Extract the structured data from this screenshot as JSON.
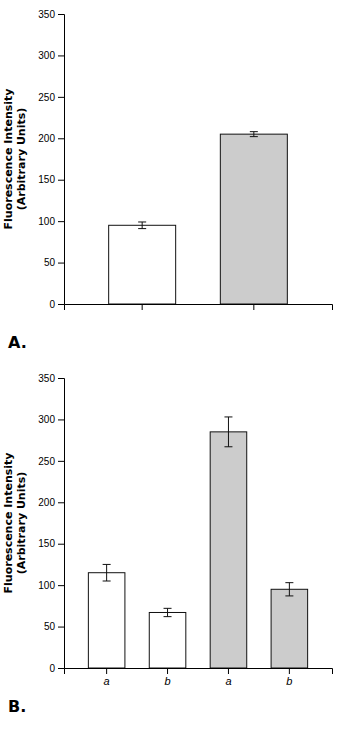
{
  "chart_data": [
    {
      "type": "bar",
      "title": "A.",
      "categories": [
        null,
        null
      ],
      "values": [
        95,
        205
      ],
      "errors": [
        4,
        3
      ],
      "colors": [
        "white",
        "#cccccc"
      ],
      "ylabel": "Fluorescence Intensity\n(Arbitrary Units)",
      "ylim": [
        0,
        350
      ],
      "yticks": [
        0,
        50,
        100,
        150,
        200,
        250,
        300,
        350
      ],
      "grid": false
    },
    {
      "type": "bar",
      "title": "B.",
      "categories": [
        "a",
        "b",
        "a",
        "b"
      ],
      "values": [
        115,
        67,
        285,
        95
      ],
      "errors": [
        10,
        5,
        18,
        8
      ],
      "colors": [
        "white",
        "white",
        "#cccccc",
        "#cccccc"
      ],
      "ylabel": "Fluorescence Intensity\n(Arbitrary Units)",
      "ylim": [
        0,
        350
      ],
      "yticks": [
        0,
        50,
        100,
        150,
        200,
        250,
        300,
        350
      ],
      "grid": false
    }
  ]
}
